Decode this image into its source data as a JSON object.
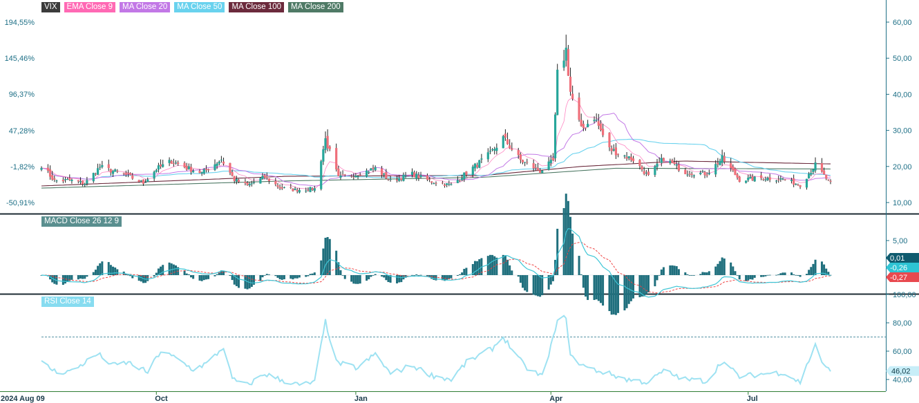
{
  "legend_main": [
    {
      "label": "VIX",
      "bg": "#3b3b3b"
    },
    {
      "label": "EMA Close 9",
      "bg": "#ff69b4"
    },
    {
      "label": "MA Close 20",
      "bg": "#c278e6"
    },
    {
      "label": "MA Close 50",
      "bg": "#69d2ee"
    },
    {
      "label": "MA Close 100",
      "bg": "#6b2a3c"
    },
    {
      "label": "MA Close 200",
      "bg": "#4f7a66"
    }
  ],
  "legend_macd": {
    "label": "MACD Close 26 12 9",
    "bg": "#5a8f8f"
  },
  "legend_rsi": {
    "label": "RSI Close 14",
    "bg": "#87dcf0"
  },
  "x_tick_labels": [
    "2024 Aug 09",
    "Oct",
    "Jan",
    "Apr",
    "Jul"
  ],
  "colors": {
    "up": "#26a69a",
    "down": "#ef6f7a",
    "wick": "#222222",
    "ema9": "#ff69b4",
    "ma20": "#c278e6",
    "ma50": "#69d2ee",
    "ma100": "#6b2a3c",
    "ma200": "#4f7a66",
    "macd_hist": "#1f6f7d",
    "macd_line": "#3ec6d6",
    "signal_line": "#ef4444",
    "rsi": "#9ee2f2",
    "axis": "#1d6f86"
  },
  "chart_data": [
    {
      "type": "candlestick",
      "title": "VIX",
      "series_names": [
        "VIX",
        "EMA Close 9",
        "MA Close 20",
        "MA Close 50",
        "MA Close 100",
        "MA Close 200"
      ],
      "x_range": [
        "2024-08-09",
        "2025-08-08"
      ],
      "y_right_ticks": [
        "60,00",
        "50,00",
        "40,00",
        "30,00",
        "20,00",
        "10,00"
      ],
      "y_left_ticks": [
        "194,55%",
        "145,46%",
        "96,37%",
        "47,28%",
        "-1,82%",
        "-50,91%"
      ],
      "ylim": [
        6.5,
        64.0
      ],
      "anchors": [
        [
          "2024-08-09",
          20.4
        ],
        [
          "2024-08-15",
          16.0
        ],
        [
          "2024-08-22",
          16.2
        ],
        [
          "2024-08-29",
          15.3
        ],
        [
          "2024-09-05",
          19.9
        ],
        [
          "2024-09-10",
          18.9
        ],
        [
          "2024-09-17",
          17.6
        ],
        [
          "2024-09-25",
          15.4
        ],
        [
          "2024-10-01",
          19.3
        ],
        [
          "2024-10-08",
          21.5
        ],
        [
          "2024-10-15",
          19.6
        ],
        [
          "2024-10-22",
          18.2
        ],
        [
          "2024-10-31",
          22.0
        ],
        [
          "2024-11-06",
          16.3
        ],
        [
          "2024-11-12",
          14.7
        ],
        [
          "2024-11-20",
          17.1
        ],
        [
          "2024-11-27",
          14.1
        ],
        [
          "2024-12-04",
          13.5
        ],
        [
          "2024-12-13",
          13.8
        ],
        [
          "2024-12-18",
          27.6
        ],
        [
          "2024-12-24",
          16.8
        ],
        [
          "2025-01-02",
          17.9
        ],
        [
          "2025-01-10",
          19.5
        ],
        [
          "2025-01-17",
          16.0
        ],
        [
          "2025-01-27",
          17.9
        ],
        [
          "2025-02-05",
          15.8
        ],
        [
          "2025-02-14",
          14.8
        ],
        [
          "2025-02-21",
          18.2
        ],
        [
          "2025-03-04",
          23.5
        ],
        [
          "2025-03-10",
          27.9
        ],
        [
          "2025-03-18",
          21.7
        ],
        [
          "2025-03-27",
          18.7
        ],
        [
          "2025-04-02",
          21.5
        ],
        [
          "2025-04-04",
          45.3
        ],
        [
          "2025-04-08",
          52.3
        ],
        [
          "2025-04-10",
          40.7
        ],
        [
          "2025-04-15",
          30.1
        ],
        [
          "2025-04-21",
          33.8
        ],
        [
          "2025-04-28",
          24.8
        ],
        [
          "2025-05-09",
          21.9
        ],
        [
          "2025-05-16",
          17.2
        ],
        [
          "2025-05-23",
          22.3
        ],
        [
          "2025-06-02",
          18.4
        ],
        [
          "2025-06-12",
          18.0
        ],
        [
          "2025-06-19",
          22.2
        ],
        [
          "2025-06-27",
          16.3
        ],
        [
          "2025-07-08",
          16.8
        ],
        [
          "2025-07-17",
          16.5
        ],
        [
          "2025-07-25",
          14.9
        ],
        [
          "2025-08-01",
          20.4
        ],
        [
          "2025-08-08",
          15.2
        ]
      ],
      "ma_levels": {
        "MA Close 100": [
          [
            "2024-08-09",
            14.6
          ],
          [
            "2024-12-01",
            17.3
          ],
          [
            "2025-03-01",
            17.5
          ],
          [
            "2025-04-15",
            20.0
          ],
          [
            "2025-06-01",
            21.5
          ],
          [
            "2025-08-08",
            20.7
          ]
        ],
        "MA Close 200": [
          [
            "2024-08-09",
            14.0
          ],
          [
            "2024-12-01",
            16.0
          ],
          [
            "2025-03-01",
            17.0
          ],
          [
            "2025-05-01",
            19.5
          ],
          [
            "2025-08-08",
            19.3
          ]
        ]
      }
    },
    {
      "type": "line",
      "title": "MACD Close 26 12 9",
      "series": [
        "MACD",
        "Signal",
        "Histogram"
      ],
      "y_ticks": [
        "5,00"
      ],
      "last_values": {
        "histogram": "0,01",
        "macd": "-0,26",
        "signal": "-0,27"
      },
      "ylim": [
        -6.2,
        7.5
      ]
    },
    {
      "type": "line",
      "title": "RSI Close 14",
      "y_ticks": [
        "100,00",
        "80,00",
        "60,00",
        "40,00"
      ],
      "ylim": [
        35,
        102
      ],
      "reference_line": 70,
      "last_value": "46,02",
      "anchors": [
        [
          "2024-08-09",
          52
        ],
        [
          "2024-08-16",
          45
        ],
        [
          "2024-08-23",
          46
        ],
        [
          "2024-09-04",
          58
        ],
        [
          "2024-09-11",
          50
        ],
        [
          "2024-09-18",
          52
        ],
        [
          "2024-09-27",
          45
        ],
        [
          "2024-10-03",
          60
        ],
        [
          "2024-10-10",
          55
        ],
        [
          "2024-10-18",
          47
        ],
        [
          "2024-10-25",
          52
        ],
        [
          "2024-11-01",
          63
        ],
        [
          "2024-11-05",
          40
        ],
        [
          "2024-11-12",
          36
        ],
        [
          "2024-11-20",
          44
        ],
        [
          "2024-11-27",
          40
        ],
        [
          "2024-12-06",
          36
        ],
        [
          "2024-12-13",
          38
        ],
        [
          "2024-12-18",
          81
        ],
        [
          "2024-12-23",
          52
        ],
        [
          "2025-01-02",
          48
        ],
        [
          "2025-01-10",
          58
        ],
        [
          "2025-01-17",
          44
        ],
        [
          "2025-01-27",
          50
        ],
        [
          "2025-02-05",
          43
        ],
        [
          "2025-02-14",
          40
        ],
        [
          "2025-02-21",
          52
        ],
        [
          "2025-03-05",
          62
        ],
        [
          "2025-03-10",
          70
        ],
        [
          "2025-03-20",
          49
        ],
        [
          "2025-03-28",
          42
        ],
        [
          "2025-04-04",
          80
        ],
        [
          "2025-04-08",
          85
        ],
        [
          "2025-04-10",
          56
        ],
        [
          "2025-04-18",
          48
        ],
        [
          "2025-04-28",
          44
        ],
        [
          "2025-05-06",
          40
        ],
        [
          "2025-05-16",
          38
        ],
        [
          "2025-05-23",
          46
        ],
        [
          "2025-06-02",
          40
        ],
        [
          "2025-06-12",
          39
        ],
        [
          "2025-06-19",
          53
        ],
        [
          "2025-06-27",
          42
        ],
        [
          "2025-07-08",
          44
        ],
        [
          "2025-07-17",
          45
        ],
        [
          "2025-07-25",
          38
        ],
        [
          "2025-08-01",
          65
        ],
        [
          "2025-08-05",
          49
        ],
        [
          "2025-08-08",
          46
        ]
      ]
    }
  ]
}
